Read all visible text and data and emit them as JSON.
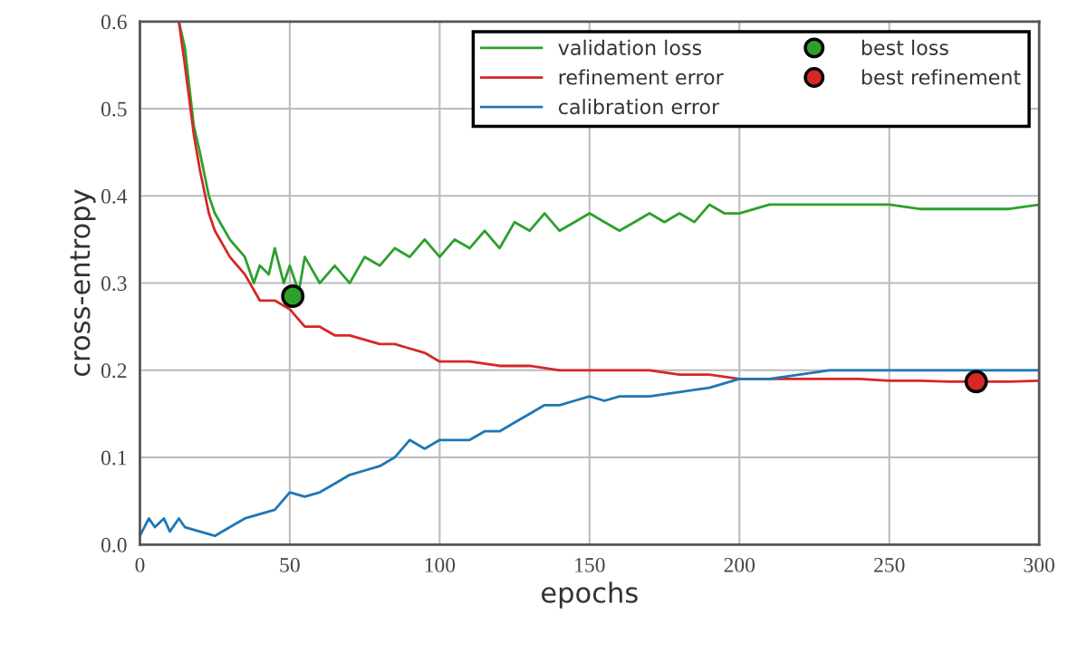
{
  "chart_data": {
    "type": "line",
    "xlabel": "epochs",
    "ylabel": "cross-entropy",
    "xlim": [
      0,
      300
    ],
    "ylim": [
      0,
      0.6
    ],
    "xticks": [
      0,
      50,
      100,
      150,
      200,
      250,
      300
    ],
    "yticks": [
      {
        "value": 0,
        "label": "0.0"
      },
      0.1,
      0.2,
      0.3,
      0.4,
      0.5,
      0.6
    ],
    "grid": true,
    "legend": "top right",
    "series": [
      {
        "name": "validation loss",
        "color": "#2ca02c",
        "x": [
          13,
          15,
          18,
          20,
          23,
          25,
          30,
          35,
          38,
          40,
          43,
          45,
          48,
          50,
          53,
          55,
          60,
          65,
          70,
          75,
          80,
          85,
          90,
          95,
          100,
          105,
          110,
          115,
          120,
          125,
          130,
          135,
          140,
          145,
          150,
          155,
          160,
          165,
          170,
          175,
          180,
          185,
          190,
          195,
          200,
          210,
          220,
          230,
          240,
          250,
          260,
          270,
          280,
          290,
          300
        ],
        "values": [
          0.6,
          0.57,
          0.48,
          0.45,
          0.4,
          0.38,
          0.35,
          0.33,
          0.3,
          0.32,
          0.31,
          0.34,
          0.3,
          0.32,
          0.29,
          0.33,
          0.3,
          0.32,
          0.3,
          0.33,
          0.32,
          0.34,
          0.33,
          0.35,
          0.33,
          0.35,
          0.34,
          0.36,
          0.34,
          0.37,
          0.36,
          0.38,
          0.36,
          0.37,
          0.38,
          0.37,
          0.36,
          0.37,
          0.38,
          0.37,
          0.38,
          0.37,
          0.39,
          0.38,
          0.38,
          0.39,
          0.39,
          0.39,
          0.39,
          0.39,
          0.385,
          0.385,
          0.385,
          0.385,
          0.39
        ]
      },
      {
        "name": "refinement error",
        "color": "#d62728",
        "x": [
          13,
          15,
          18,
          20,
          23,
          25,
          30,
          35,
          40,
          45,
          50,
          55,
          60,
          65,
          70,
          75,
          80,
          85,
          90,
          95,
          100,
          110,
          120,
          130,
          140,
          150,
          160,
          170,
          180,
          190,
          200,
          210,
          220,
          230,
          240,
          250,
          260,
          270,
          280,
          290,
          300
        ],
        "values": [
          0.6,
          0.55,
          0.47,
          0.43,
          0.38,
          0.36,
          0.33,
          0.31,
          0.28,
          0.28,
          0.27,
          0.25,
          0.25,
          0.24,
          0.24,
          0.235,
          0.23,
          0.23,
          0.225,
          0.22,
          0.21,
          0.21,
          0.205,
          0.205,
          0.2,
          0.2,
          0.2,
          0.2,
          0.195,
          0.195,
          0.19,
          0.19,
          0.19,
          0.19,
          0.19,
          0.188,
          0.188,
          0.187,
          0.187,
          0.187,
          0.188
        ]
      },
      {
        "name": "calibration error",
        "color": "#1f77b4",
        "x": [
          0,
          3,
          5,
          8,
          10,
          13,
          15,
          20,
          25,
          30,
          35,
          40,
          45,
          50,
          55,
          60,
          65,
          70,
          75,
          80,
          85,
          90,
          95,
          100,
          105,
          110,
          115,
          120,
          125,
          130,
          135,
          140,
          145,
          150,
          155,
          160,
          170,
          180,
          190,
          200,
          210,
          220,
          230,
          240,
          250,
          260,
          270,
          280,
          290,
          300
        ],
        "values": [
          0.01,
          0.03,
          0.02,
          0.03,
          0.015,
          0.03,
          0.02,
          0.015,
          0.01,
          0.02,
          0.03,
          0.035,
          0.04,
          0.06,
          0.055,
          0.06,
          0.07,
          0.08,
          0.085,
          0.09,
          0.1,
          0.12,
          0.11,
          0.12,
          0.12,
          0.12,
          0.13,
          0.13,
          0.14,
          0.15,
          0.16,
          0.16,
          0.165,
          0.17,
          0.165,
          0.17,
          0.17,
          0.175,
          0.18,
          0.19,
          0.19,
          0.195,
          0.2,
          0.2,
          0.2,
          0.2,
          0.2,
          0.2,
          0.2,
          0.2
        ]
      },
      {
        "name": "best loss",
        "type": "scatter",
        "marker": "circle",
        "color": "#2ca02c",
        "x": [
          51
        ],
        "values": [
          0.285
        ]
      },
      {
        "name": "best refinement",
        "type": "scatter",
        "marker": "circle",
        "color": "#d62728",
        "x": [
          279
        ],
        "values": [
          0.187
        ]
      }
    ]
  }
}
